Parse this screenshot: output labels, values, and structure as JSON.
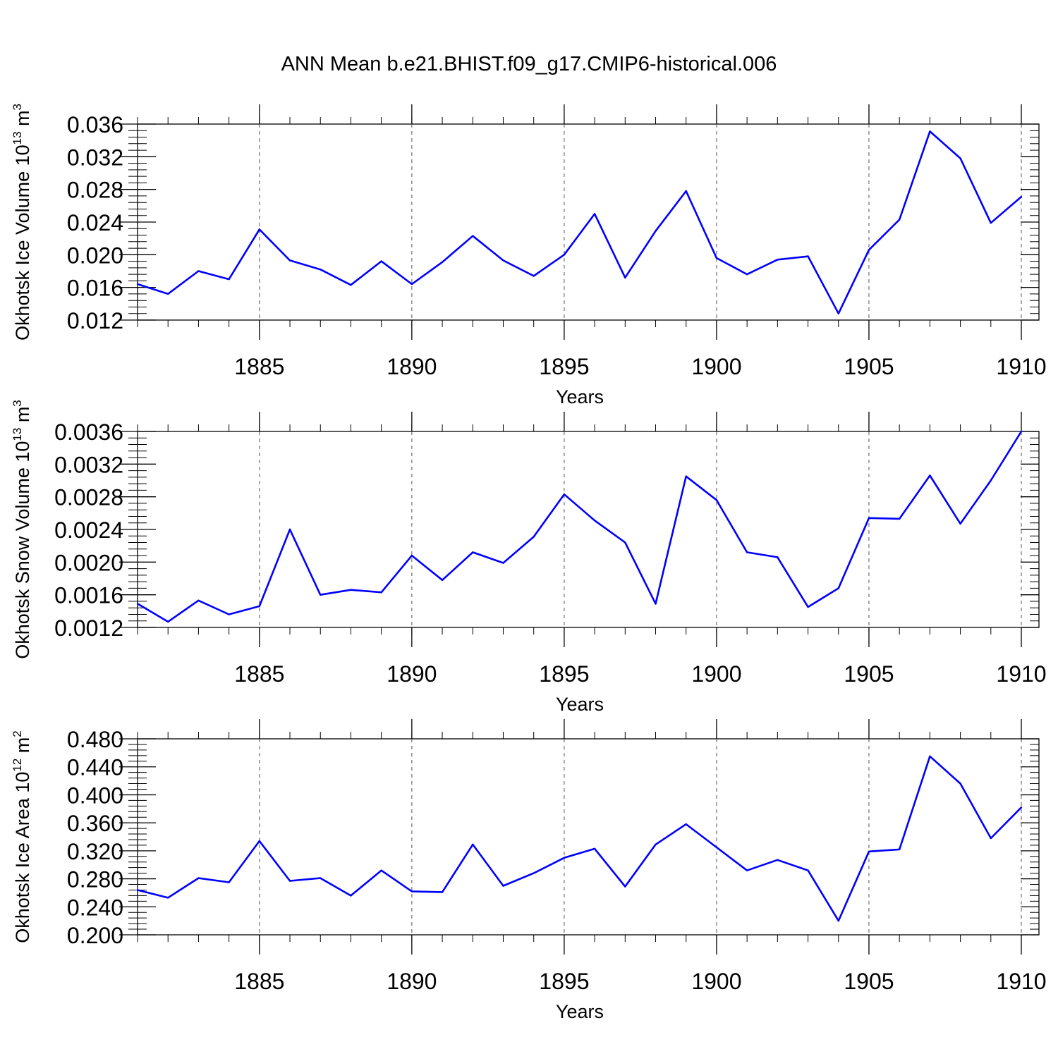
{
  "title": "ANN Mean b.e21.BHIST.f09_g17.CMIP6-historical.006",
  "colors": {
    "line": "#0000ff",
    "axis": "#000000",
    "grid": "#000000"
  },
  "chart_data": [
    {
      "type": "line",
      "x": [
        1881,
        1882,
        1883,
        1884,
        1885,
        1886,
        1887,
        1888,
        1889,
        1890,
        1891,
        1892,
        1893,
        1894,
        1895,
        1896,
        1897,
        1898,
        1899,
        1900,
        1901,
        1902,
        1903,
        1904,
        1905,
        1906,
        1907,
        1908,
        1909,
        1910
      ],
      "values": [
        0.0164,
        0.0152,
        0.018,
        0.017,
        0.0231,
        0.0193,
        0.0182,
        0.0163,
        0.0192,
        0.0164,
        0.0191,
        0.0223,
        0.0193,
        0.0174,
        0.02,
        0.025,
        0.0172,
        0.0229,
        0.0278,
        0.0196,
        0.0176,
        0.0194,
        0.0198,
        0.0128,
        0.0206,
        0.0243,
        0.0351,
        0.0318,
        0.0239,
        0.0271
      ],
      "xlim": [
        1881,
        1910
      ],
      "ylim": [
        0.012,
        0.036
      ],
      "x_ticks": [
        1885,
        1890,
        1895,
        1900,
        1905,
        1910
      ],
      "y_ticks": [
        "0.012",
        "0.016",
        "0.020",
        "0.024",
        "0.028",
        "0.032",
        "0.036"
      ],
      "ylabel": {
        "text": "Okhotsk Ice Volume 10",
        "exp": "13",
        "unit": " m",
        "unit_exp": "3"
      },
      "xlabel": "Years",
      "grid": "vertical dashed at major x ticks"
    },
    {
      "type": "line",
      "x": [
        1881,
        1882,
        1883,
        1884,
        1885,
        1886,
        1887,
        1888,
        1889,
        1890,
        1891,
        1892,
        1893,
        1894,
        1895,
        1896,
        1897,
        1898,
        1899,
        1900,
        1901,
        1902,
        1903,
        1904,
        1905,
        1906,
        1907,
        1908,
        1909,
        1910
      ],
      "values": [
        0.00149,
        0.00127,
        0.00153,
        0.00136,
        0.00146,
        0.0024,
        0.0016,
        0.00166,
        0.00163,
        0.00208,
        0.00178,
        0.00212,
        0.00199,
        0.00231,
        0.00283,
        0.00251,
        0.00224,
        0.00149,
        0.00305,
        0.00276,
        0.00212,
        0.00206,
        0.00145,
        0.00168,
        0.00254,
        0.00253,
        0.00306,
        0.00247,
        0.003,
        0.0036
      ],
      "xlim": [
        1881,
        1910
      ],
      "ylim": [
        0.0012,
        0.0036
      ],
      "x_ticks": [
        1885,
        1890,
        1895,
        1900,
        1905,
        1910
      ],
      "y_ticks": [
        "0.0012",
        "0.0016",
        "0.0020",
        "0.0024",
        "0.0028",
        "0.0032",
        "0.0036"
      ],
      "ylabel": {
        "text": "Okhotsk Snow Volume 10",
        "exp": "13",
        "unit": " m",
        "unit_exp": "3"
      },
      "xlabel": "Years",
      "grid": "vertical dashed at major x ticks"
    },
    {
      "type": "line",
      "x": [
        1881,
        1882,
        1883,
        1884,
        1885,
        1886,
        1887,
        1888,
        1889,
        1890,
        1891,
        1892,
        1893,
        1894,
        1895,
        1896,
        1897,
        1898,
        1899,
        1900,
        1901,
        1902,
        1903,
        1904,
        1905,
        1906,
        1907,
        1908,
        1909,
        1910
      ],
      "values": [
        0.264,
        0.253,
        0.281,
        0.275,
        0.334,
        0.277,
        0.281,
        0.256,
        0.292,
        0.262,
        0.261,
        0.329,
        0.27,
        0.288,
        0.31,
        0.323,
        0.269,
        0.329,
        0.358,
        0.325,
        0.292,
        0.307,
        0.292,
        0.22,
        0.319,
        0.322,
        0.455,
        0.416,
        0.338,
        0.382
      ],
      "xlim": [
        1881,
        1910
      ],
      "ylim": [
        0.2,
        0.48
      ],
      "x_ticks": [
        1885,
        1890,
        1895,
        1900,
        1905,
        1910
      ],
      "y_ticks": [
        "0.200",
        "0.240",
        "0.280",
        "0.320",
        "0.360",
        "0.400",
        "0.440",
        "0.480"
      ],
      "ylabel": {
        "text": "Okhotsk Ice Area 10",
        "exp": "12",
        "unit": " m",
        "unit_exp": "2"
      },
      "xlabel": "Years",
      "grid": "vertical dashed at major x ticks"
    }
  ]
}
